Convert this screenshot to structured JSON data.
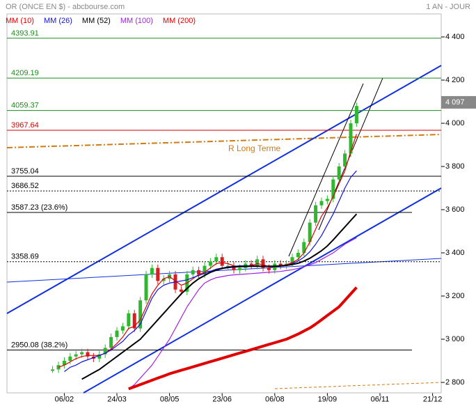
{
  "chart_data": {
    "type": "line",
    "title": "OR (ONCE EN $) - abcbourse.com",
    "period": "1 AN - JOUR",
    "annotation": "R Long Terme",
    "ylim": [
      2750,
      4500
    ],
    "yticks": [
      {
        "value": 2800,
        "label": "2 800"
      },
      {
        "value": 3000,
        "label": "3 000"
      },
      {
        "value": 3200,
        "label": "3 200"
      },
      {
        "value": 3400,
        "label": "3 400"
      },
      {
        "value": 3600,
        "label": "3 600"
      },
      {
        "value": 3800,
        "label": "3 800"
      },
      {
        "value": 4000,
        "label": "4 000"
      },
      {
        "value": 4200,
        "label": "4 200"
      },
      {
        "value": 4400,
        "label": "4 400"
      }
    ],
    "last_price": {
      "value": 4097,
      "label": "4 097"
    },
    "levels": [
      {
        "value": 4393.91,
        "color": "#1a8a1a",
        "style": "solid"
      },
      {
        "value": 4209.19,
        "color": "#1a8a1a",
        "style": "solid"
      },
      {
        "value": 4059.37,
        "color": "#1a8a1a",
        "style": "solid"
      },
      {
        "value": 3967.64,
        "color": "#d00000",
        "style": "solid"
      },
      {
        "value": 3755.04,
        "color": "#000000",
        "style": "solid"
      },
      {
        "value": 3686.52,
        "color": "#000000",
        "style": "dotted"
      },
      {
        "value": 3587.23,
        "label": "3587.23  (23.6%)",
        "color": "#000000",
        "style": "short"
      },
      {
        "value": 3358.69,
        "color": "#000000",
        "style": "dotted"
      },
      {
        "value": 2950.08,
        "label": "2950.08  (38.2%)",
        "color": "#000000",
        "style": "short"
      }
    ],
    "categories": [
      null,
      null,
      "06/02",
      null,
      null,
      null,
      null,
      null,
      null,
      null,
      null,
      "24/03",
      null,
      null,
      null,
      null,
      null,
      null,
      null,
      null,
      "08/05",
      null,
      null,
      null,
      null,
      null,
      null,
      null,
      null,
      "23/06",
      null,
      null,
      null,
      null,
      null,
      null,
      null,
      null,
      "06/08",
      null,
      null,
      null,
      null,
      null,
      null,
      null,
      null,
      "19/09",
      null,
      null,
      null,
      null,
      null,
      null,
      null,
      null,
      "06/11",
      null,
      null,
      null,
      null,
      null,
      null,
      null,
      null,
      "21/12",
      null
    ],
    "price": {
      "up_color": "#2db82d",
      "down_color": "#d42020",
      "values": [
        2860,
        2880,
        2900,
        2920,
        2930,
        2940,
        2920,
        2910,
        2930,
        2960,
        3010,
        3040,
        3060,
        3120,
        3050,
        3180,
        3300,
        3330,
        3270,
        3280,
        3300,
        3230,
        3220,
        3300,
        3320,
        3300,
        3340,
        3360,
        3380,
        3340,
        3340,
        3320,
        3330,
        3350,
        3340,
        3370,
        3330,
        3320,
        3350,
        3340,
        3350,
        3380,
        3400,
        3450,
        3540,
        3620,
        3640,
        3650,
        3740,
        3800,
        3860,
        4000,
        4080,
        null,
        null,
        null,
        null,
        null,
        null,
        null,
        null,
        null,
        null,
        null,
        null,
        null,
        null
      ]
    },
    "series": [
      {
        "name": "MM (10)",
        "color": "#e00000",
        "width": 1.2,
        "values": [
          null,
          2870,
          2880,
          2895,
          2910,
          2920,
          2925,
          2925,
          2925,
          2935,
          2955,
          2980,
          3010,
          3050,
          3060,
          3090,
          3150,
          3210,
          3250,
          3280,
          3290,
          3270,
          3250,
          3260,
          3280,
          3300,
          3310,
          3330,
          3350,
          3355,
          3350,
          3340,
          3335,
          3338,
          3340,
          3350,
          3345,
          3335,
          3335,
          3340,
          3345,
          3355,
          3370,
          3400,
          3450,
          3510,
          3570,
          3610,
          3660,
          3720,
          3780,
          3870,
          3950,
          null,
          null,
          null,
          null,
          null,
          null,
          null,
          null,
          null,
          null,
          null,
          null,
          null,
          null
        ]
      },
      {
        "name": "MM (26)",
        "color": "#1010e0",
        "width": 1.2,
        "values": [
          null,
          null,
          2850,
          2870,
          2880,
          2895,
          2905,
          2915,
          2925,
          2935,
          2950,
          2970,
          2990,
          3020,
          3040,
          3070,
          3130,
          3190,
          3230,
          3250,
          3260,
          3265,
          3270,
          3275,
          3285,
          3295,
          3305,
          3315,
          3325,
          3330,
          3335,
          3338,
          3340,
          3340,
          3340,
          3340,
          3338,
          3336,
          3336,
          3338,
          3342,
          3350,
          3362,
          3380,
          3405,
          3440,
          3480,
          3530,
          3580,
          3640,
          3700,
          3750,
          3780,
          null,
          null,
          null,
          null,
          null,
          null,
          null,
          null,
          null,
          null,
          null,
          null,
          null,
          null
        ]
      },
      {
        "name": "MM (52)",
        "color": "#000000",
        "width": 2,
        "values": [
          null,
          null,
          null,
          null,
          null,
          2815,
          2830,
          2845,
          2860,
          2880,
          2900,
          2920,
          2940,
          2960,
          2980,
          3000,
          3030,
          3060,
          3090,
          3120,
          3150,
          3180,
          3210,
          3235,
          3260,
          3280,
          3295,
          3310,
          3320,
          3328,
          3332,
          3335,
          3336,
          3337,
          3338,
          3338,
          3338,
          3338,
          3338,
          3340,
          3342,
          3346,
          3352,
          3362,
          3375,
          3392,
          3410,
          3432,
          3460,
          3490,
          3520,
          3550,
          3580,
          null,
          null,
          null,
          null,
          null,
          null,
          null,
          null,
          null,
          null,
          null,
          null,
          null,
          null
        ]
      },
      {
        "name": "MM (100)",
        "color": "#a020e0",
        "width": 1.2,
        "values": [
          null,
          null,
          null,
          null,
          null,
          null,
          null,
          null,
          null,
          null,
          null,
          null,
          null,
          2770,
          2790,
          2820,
          2850,
          2880,
          2920,
          2960,
          3000,
          3050,
          3100,
          3150,
          3190,
          3230,
          3260,
          3275,
          3285,
          3290,
          3295,
          3298,
          3300,
          3302,
          3304,
          3306,
          3308,
          3310,
          3312,
          3314,
          3318,
          3322,
          3328,
          3335,
          3345,
          3355,
          3370,
          3385,
          3400,
          3420,
          3440,
          3455,
          3470,
          null,
          null,
          null,
          null,
          null,
          null,
          null,
          null,
          null,
          null,
          null,
          null,
          null,
          null
        ]
      },
      {
        "name": "MM (200)",
        "color": "#e00000",
        "width": 4,
        "values": [
          null,
          null,
          null,
          null,
          null,
          null,
          null,
          null,
          null,
          null,
          null,
          null,
          null,
          2770,
          2780,
          2790,
          2800,
          2810,
          2820,
          2830,
          2840,
          2848,
          2856,
          2864,
          2872,
          2880,
          2888,
          2896,
          2904,
          2912,
          2920,
          2928,
          2936,
          2944,
          2952,
          2960,
          2968,
          2976,
          2984,
          2992,
          3000,
          3012,
          3024,
          3038,
          3052,
          3070,
          3090,
          3110,
          3130,
          3150,
          3180,
          3210,
          3240,
          null,
          null,
          null,
          null,
          null,
          null,
          null,
          null,
          null,
          null,
          null,
          null,
          null,
          null
        ]
      }
    ]
  }
}
